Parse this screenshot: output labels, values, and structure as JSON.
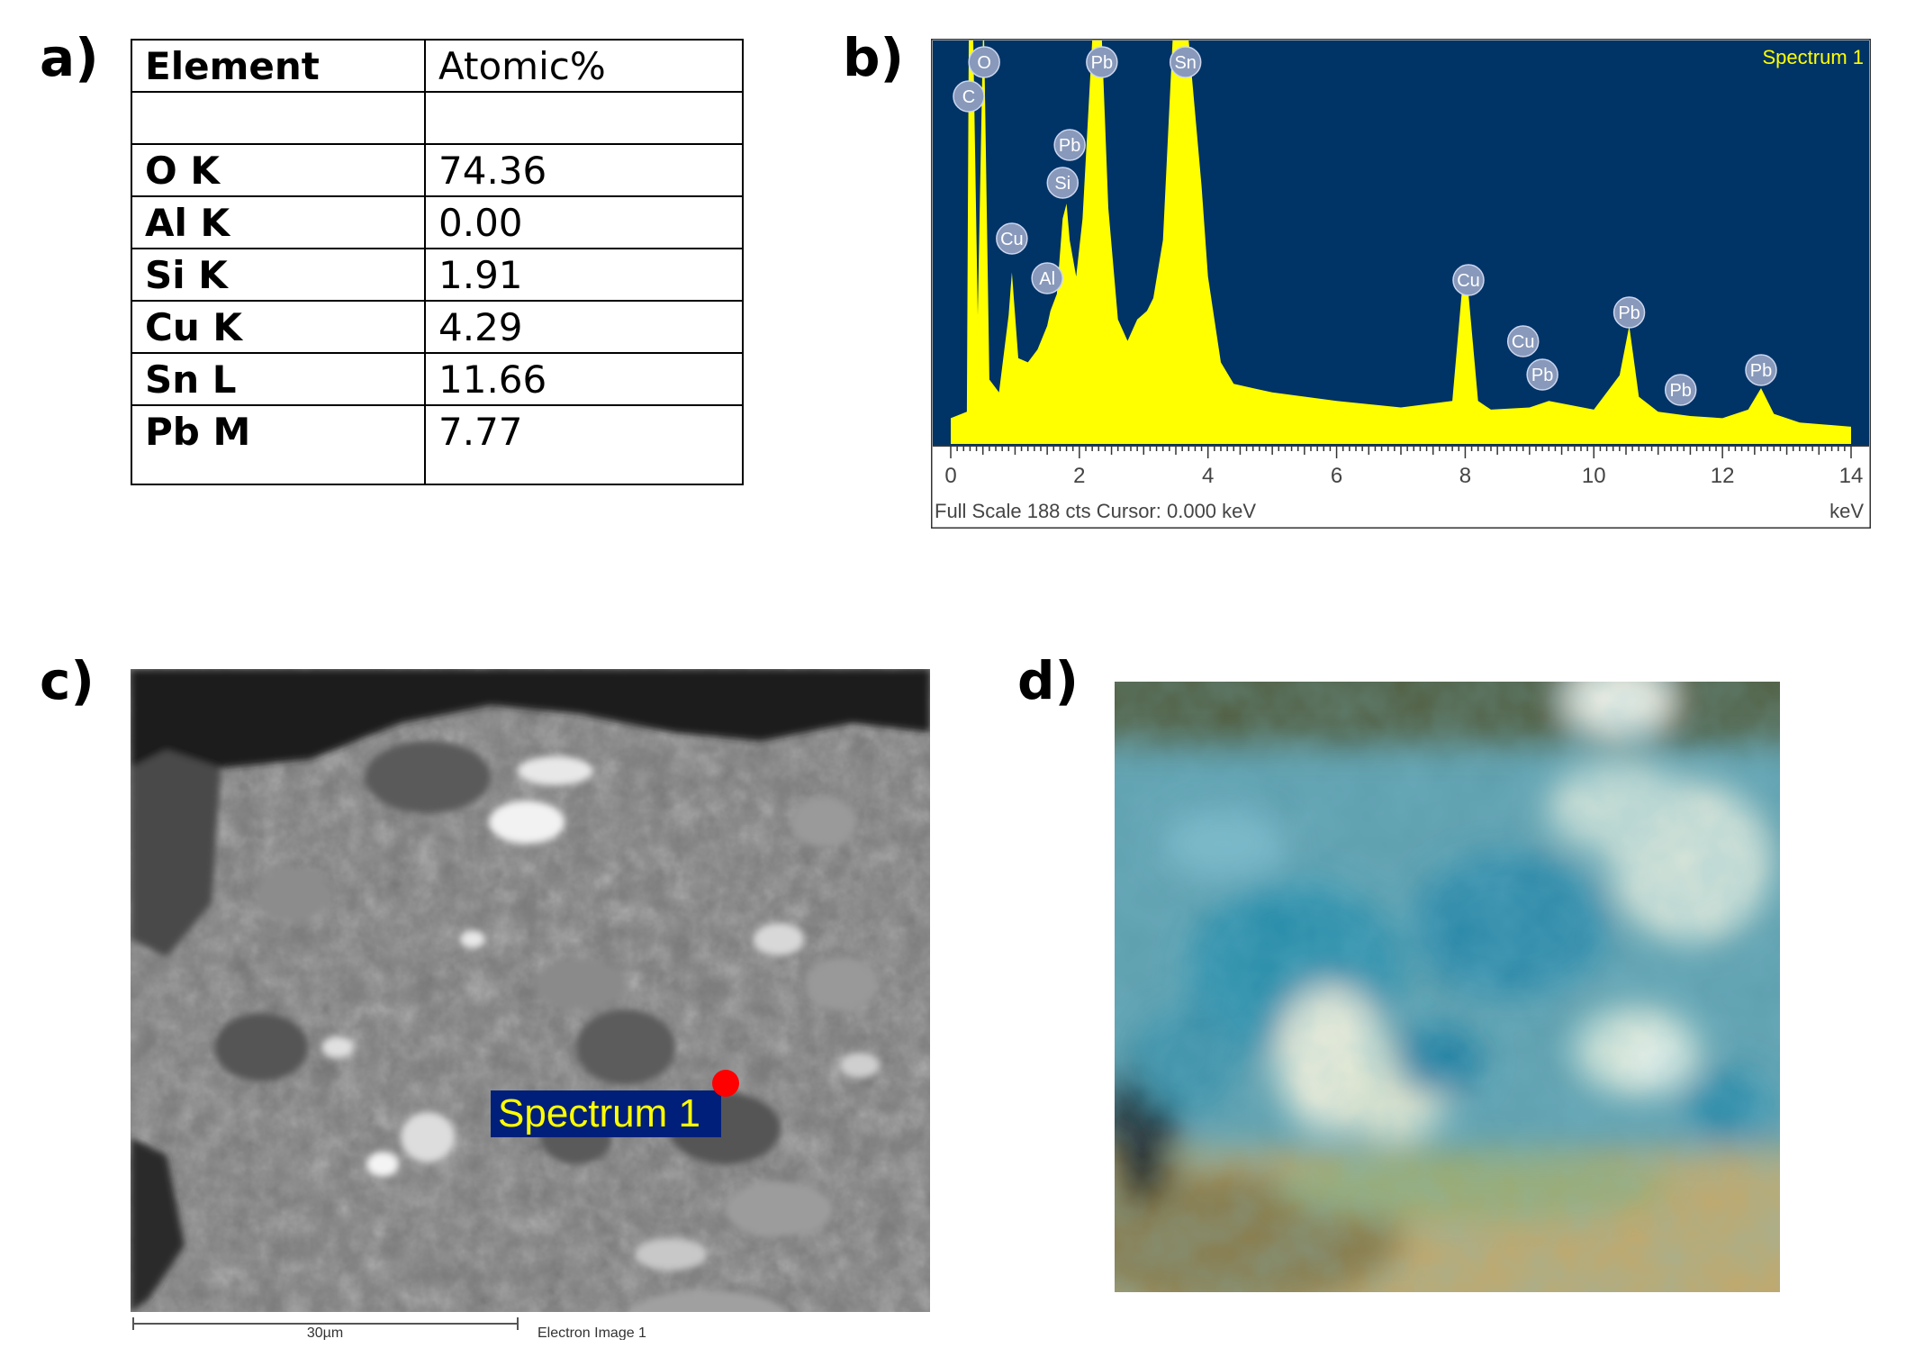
{
  "panels": {
    "a": "a)",
    "b": "b)",
    "c": "c)",
    "d": "d)"
  },
  "table": {
    "header": {
      "element": "Element",
      "value": "Atomic%"
    },
    "rows": [
      {
        "element": "O K",
        "value": "74.36"
      },
      {
        "element": "Al K",
        "value": "0.00"
      },
      {
        "element": "Si K",
        "value": "1.91"
      },
      {
        "element": "Cu K",
        "value": "4.29"
      },
      {
        "element": "Sn L",
        "value": "11.66"
      },
      {
        "element": "Pb M",
        "value": "7.77"
      }
    ]
  },
  "chart_data": {
    "type": "line",
    "title": "Spectrum 1",
    "xlabel": "keV",
    "xlim": [
      0,
      14
    ],
    "xticks": [
      "0",
      "2",
      "4",
      "6",
      "8",
      "10",
      "12",
      "14"
    ],
    "footer": "Full Scale 188 cts  Cursor: 0.000 keV",
    "ylim": [
      0,
      188
    ],
    "colors": {
      "background": "#003366",
      "fill": "#ffff00",
      "label": "#8899bb"
    },
    "series": [
      {
        "x": [
          0.0,
          0.25,
          0.28,
          0.35,
          0.42,
          0.5,
          0.52,
          0.6,
          0.75,
          0.9,
          0.95,
          1.05,
          1.2,
          1.35,
          1.5,
          1.55,
          1.65,
          1.74,
          1.8,
          1.85,
          1.95,
          2.05,
          2.2,
          2.3,
          2.35,
          2.45,
          2.6,
          2.75,
          2.9,
          3.05,
          3.15,
          3.3,
          3.45,
          3.5,
          3.6,
          3.7,
          3.9,
          4.0,
          4.2,
          4.4,
          5.0,
          6.0,
          7.0,
          7.8,
          7.95,
          8.05,
          8.2,
          8.4,
          9.0,
          9.3,
          10.0,
          10.4,
          10.55,
          10.7,
          11.0,
          11.5,
          12.0,
          12.4,
          12.6,
          12.8,
          13.2,
          14.0
        ],
        "y": [
          12,
          15,
          188,
          188,
          60,
          188,
          188,
          30,
          24,
          60,
          80,
          40,
          38,
          44,
          55,
          62,
          70,
          105,
          112,
          95,
          78,
          105,
          188,
          188,
          188,
          110,
          58,
          48,
          58,
          62,
          68,
          95,
          188,
          188,
          188,
          188,
          120,
          78,
          38,
          28,
          24,
          20,
          17,
          20,
          72,
          70,
          20,
          16,
          17,
          20,
          16,
          32,
          55,
          22,
          15,
          13,
          12,
          16,
          26,
          14,
          10,
          8
        ]
      }
    ],
    "peak_labels": [
      {
        "text": "O",
        "x": 0.52
      },
      {
        "text": "C",
        "x": 0.28
      },
      {
        "text": "Pb",
        "x": 2.35
      },
      {
        "text": "Sn",
        "x": 3.65
      },
      {
        "text": "Pb",
        "x": 1.85
      },
      {
        "text": "Si",
        "x": 1.74
      },
      {
        "text": "Cu",
        "x": 0.95
      },
      {
        "text": "Al",
        "x": 1.5
      },
      {
        "text": "Cu",
        "x": 8.05
      },
      {
        "text": "Pb",
        "x": 10.55
      },
      {
        "text": "Cu",
        "x": 8.9
      },
      {
        "text": "Pb",
        "x": 9.2
      },
      {
        "text": "Pb",
        "x": 11.35
      },
      {
        "text": "Pb",
        "x": 12.6
      }
    ]
  },
  "sem": {
    "spot_label": "Spectrum 1",
    "scale_label": "30µm",
    "caption": "Electron Image 1"
  }
}
